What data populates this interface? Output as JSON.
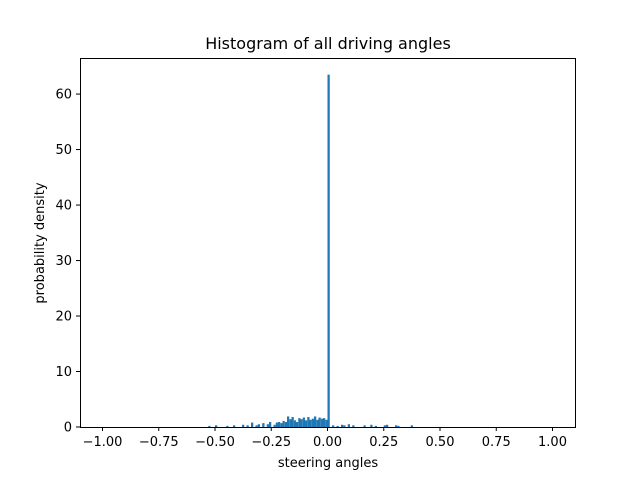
{
  "chart_data": {
    "type": "bar",
    "title": "Histogram of all driving angles",
    "xlabel": "steering angles",
    "ylabel": "probability density",
    "xlim": [
      -1.1,
      1.1
    ],
    "ylim": [
      0,
      66.5
    ],
    "grid": false,
    "legend": "none",
    "bar_color": "#1f77b4",
    "x_ticks": [
      -1.0,
      -0.75,
      -0.5,
      -0.25,
      0.0,
      0.25,
      0.5,
      0.75,
      1.0
    ],
    "x_tick_labels": [
      "−1.00",
      "−0.75",
      "−0.50",
      "−0.25",
      "0.00",
      "0.25",
      "0.50",
      "0.75",
      "1.00"
    ],
    "y_ticks": [
      0,
      10,
      20,
      30,
      40,
      50,
      60
    ],
    "y_tick_labels": [
      "0",
      "10",
      "20",
      "30",
      "40",
      "50",
      "60"
    ],
    "bin_width": 0.01,
    "bins": [
      {
        "x": -0.53,
        "y": 0.2
      },
      {
        "x": -0.5,
        "y": 0.3
      },
      {
        "x": -0.45,
        "y": 0.2
      },
      {
        "x": -0.42,
        "y": 0.3
      },
      {
        "x": -0.38,
        "y": 0.4
      },
      {
        "x": -0.36,
        "y": 0.3
      },
      {
        "x": -0.34,
        "y": 0.8
      },
      {
        "x": -0.32,
        "y": 0.3
      },
      {
        "x": -0.31,
        "y": 0.5
      },
      {
        "x": -0.29,
        "y": 0.7
      },
      {
        "x": -0.27,
        "y": 0.5
      },
      {
        "x": -0.26,
        "y": 0.9
      },
      {
        "x": -0.24,
        "y": 0.4
      },
      {
        "x": -0.23,
        "y": 0.8
      },
      {
        "x": -0.22,
        "y": 0.9
      },
      {
        "x": -0.21,
        "y": 0.7
      },
      {
        "x": -0.2,
        "y": 1.1
      },
      {
        "x": -0.19,
        "y": 0.9
      },
      {
        "x": -0.18,
        "y": 1.9
      },
      {
        "x": -0.17,
        "y": 1.4
      },
      {
        "x": -0.16,
        "y": 1.8
      },
      {
        "x": -0.15,
        "y": 1.2
      },
      {
        "x": -0.14,
        "y": 0.9
      },
      {
        "x": -0.13,
        "y": 1.6
      },
      {
        "x": -0.12,
        "y": 1.4
      },
      {
        "x": -0.11,
        "y": 1.7
      },
      {
        "x": -0.1,
        "y": 1.2
      },
      {
        "x": -0.09,
        "y": 1.8
      },
      {
        "x": -0.08,
        "y": 1.3
      },
      {
        "x": -0.07,
        "y": 1.5
      },
      {
        "x": -0.06,
        "y": 1.9
      },
      {
        "x": -0.05,
        "y": 1.3
      },
      {
        "x": -0.04,
        "y": 1.7
      },
      {
        "x": -0.03,
        "y": 1.5
      },
      {
        "x": -0.02,
        "y": 1.6
      },
      {
        "x": -0.01,
        "y": 1.3
      },
      {
        "x": 0.0,
        "y": 63.5
      },
      {
        "x": 0.02,
        "y": 0.3
      },
      {
        "x": 0.04,
        "y": 0.2
      },
      {
        "x": 0.06,
        "y": 0.4
      },
      {
        "x": 0.07,
        "y": 0.3
      },
      {
        "x": 0.09,
        "y": 0.5
      },
      {
        "x": 0.11,
        "y": 0.3
      },
      {
        "x": 0.16,
        "y": 0.3
      },
      {
        "x": 0.19,
        "y": 0.4
      },
      {
        "x": 0.21,
        "y": 0.2
      },
      {
        "x": 0.25,
        "y": 0.3
      },
      {
        "x": 0.26,
        "y": 0.4
      },
      {
        "x": 0.3,
        "y": 0.3
      },
      {
        "x": 0.31,
        "y": 0.2
      },
      {
        "x": 0.37,
        "y": 0.3
      }
    ]
  }
}
